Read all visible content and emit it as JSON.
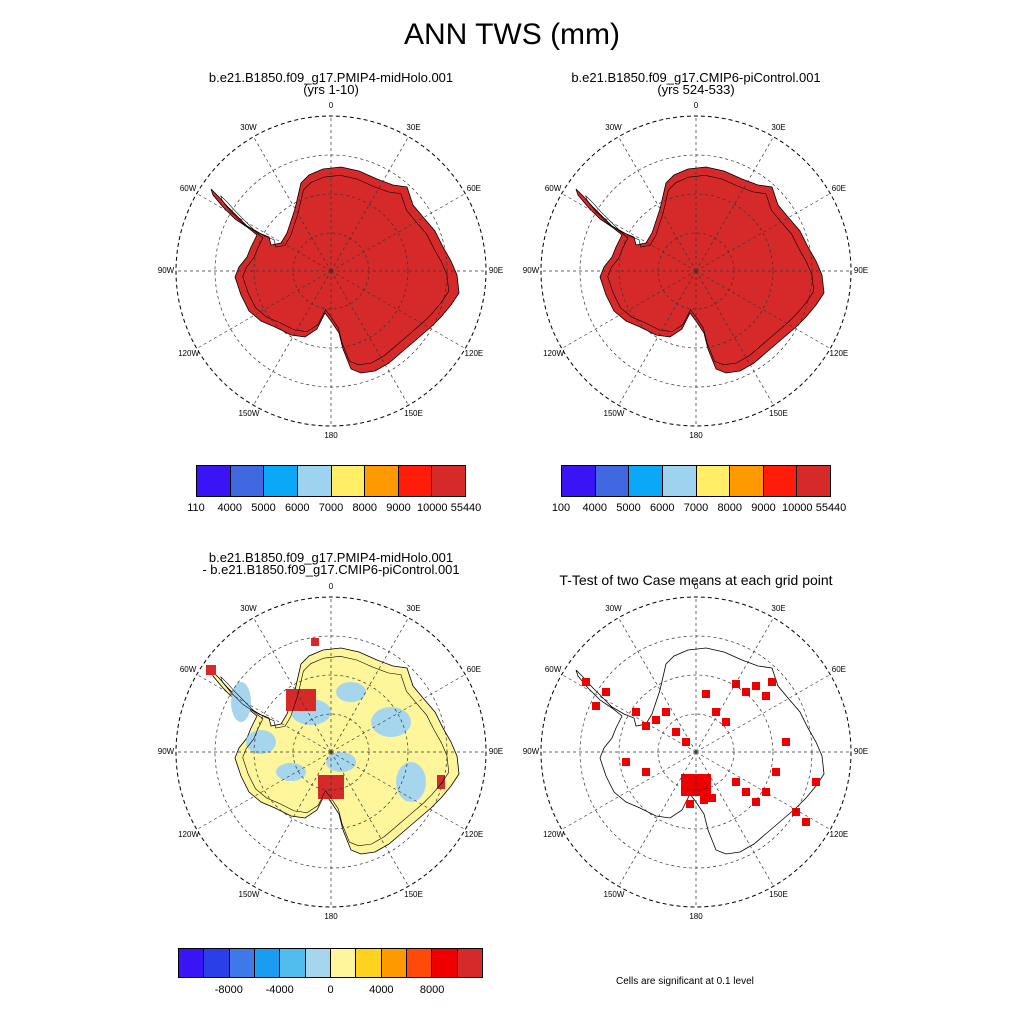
{
  "title": "ANN TWS (mm)",
  "panels": [
    {
      "id": "p1",
      "title_lines": [
        "b.e21.B1850.f09_g17.PMIP4-midHolo.001",
        "(yrs 1-10)"
      ]
    },
    {
      "id": "p2",
      "title_lines": [
        "b.e21.B1850.f09_g17.CMIP6-piControl.001",
        "(yrs 524-533)"
      ]
    },
    {
      "id": "p3",
      "title_lines": [
        "b.e21.B1850.f09_g17.PMIP4-midHolo.001",
        "- b.e21.B1850.f09_g17.CMIP6-piControl.001"
      ]
    },
    {
      "id": "p4",
      "title_lines": [
        "T-Test of two Case means at each grid point"
      ]
    }
  ],
  "longitude_labels": [
    "0",
    "30E",
    "60E",
    "90E",
    "120E",
    "150E",
    "180",
    "150W",
    "120W",
    "90W",
    "60W",
    "30W"
  ],
  "colorbar_abs": {
    "colors": [
      "#3b14f5",
      "#3f67e0",
      "#0aa8f7",
      "#9dd3ef",
      "#ffee66",
      "#ff9900",
      "#ff1c0a",
      "#d62a2a"
    ],
    "labels_left": [
      "110",
      "4000",
      "5000",
      "6000",
      "7000",
      "8000",
      "9000",
      "10000",
      "55440"
    ],
    "labels_right": [
      "100",
      "4000",
      "5000",
      "6000",
      "7000",
      "8000",
      "9000",
      "10000",
      "55440"
    ]
  },
  "colorbar_diff": {
    "colors": [
      "#3b14f5",
      "#2a3fe8",
      "#3f78e8",
      "#1a9df0",
      "#50bdee",
      "#a6d6ee",
      "#fff59a",
      "#ffd21f",
      "#ff9900",
      "#ff4a0a",
      "#ee0000",
      "#d62a2a"
    ],
    "labels": [
      "-8000",
      "-4000",
      "0",
      "4000",
      "8000"
    ]
  },
  "significance_note": "Cells are significant at 0.1 level",
  "colors": {
    "full_fill": "#d62a2a",
    "diff_base": "#fff59a",
    "diff_neg": "#a6d6ee",
    "sig": "#ee0000"
  }
}
